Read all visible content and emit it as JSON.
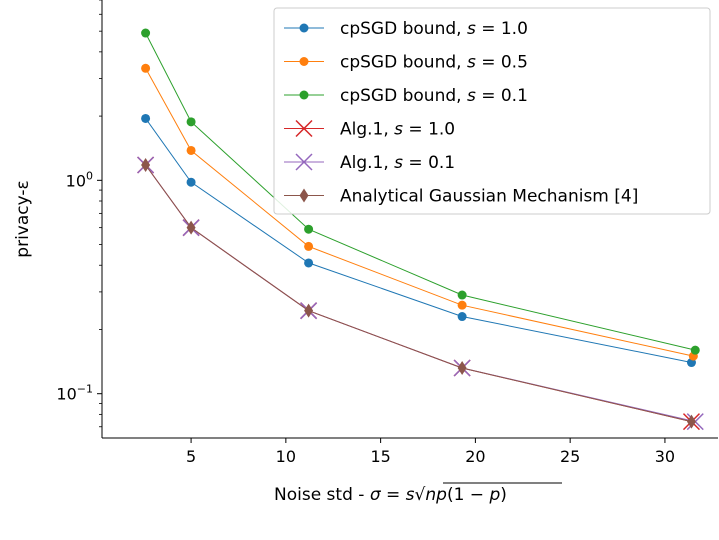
{
  "chart_data": {
    "type": "line",
    "xlabel": "Noise std - σ = s√(np(1 − p))",
    "ylabel": "privacy-ε",
    "xscale": "linear",
    "yscale": "log",
    "xlim": [
      0.3,
      32.8
    ],
    "ylim": [
      0.062,
      7.0
    ],
    "xticks": [
      5,
      10,
      15,
      20,
      25,
      30
    ],
    "xtick_labels": [
      "5",
      "10",
      "15",
      "20",
      "25",
      "30"
    ],
    "yticks": [
      0.1,
      1.0
    ],
    "ytick_labels": [
      "10⁻¹",
      "10⁰"
    ],
    "grid": false,
    "legend_position": "top-right",
    "series": [
      {
        "name": "cpSGD bound, s = 1.0",
        "color": "#1f77b4",
        "marker": "circle",
        "x": [
          2.6,
          5.0,
          11.2,
          19.3,
          31.4
        ],
        "y": [
          1.95,
          0.98,
          0.41,
          0.23,
          0.14
        ]
      },
      {
        "name": "cpSGD bound, s = 0.5",
        "color": "#ff7f0e",
        "marker": "circle",
        "x": [
          2.6,
          5.0,
          11.2,
          19.3,
          31.5
        ],
        "y": [
          3.35,
          1.38,
          0.49,
          0.26,
          0.15
        ]
      },
      {
        "name": "cpSGD bound, s = 0.1",
        "color": "#2ca02c",
        "marker": "circle",
        "x": [
          2.6,
          5.0,
          11.2,
          19.3,
          31.6
        ],
        "y": [
          4.9,
          1.88,
          0.59,
          0.29,
          0.16
        ]
      },
      {
        "name": "Alg.1, s = 1.0",
        "color": "#d62728",
        "marker": "x",
        "x": [
          2.6,
          5.0,
          11.2,
          19.3,
          31.4
        ],
        "y": [
          1.18,
          0.6,
          0.245,
          0.132,
          0.074
        ]
      },
      {
        "name": "Alg.1, s = 0.1",
        "color": "#9467bd",
        "marker": "x",
        "x": [
          2.6,
          5.0,
          11.2,
          19.3,
          31.6
        ],
        "y": [
          1.18,
          0.6,
          0.245,
          0.132,
          0.074
        ]
      },
      {
        "name": "Analytical Gaussian Mechanism [4]",
        "color": "#8c564b",
        "marker": "diamond",
        "x": [
          2.6,
          5.0,
          11.2,
          19.3,
          31.4
        ],
        "y": [
          1.18,
          0.6,
          0.245,
          0.132,
          0.074
        ]
      }
    ],
    "legend_entries": [
      {
        "prefix": "cpSGD bound, ",
        "var": "s",
        "suffix": " = 1.0"
      },
      {
        "prefix": "cpSGD bound, ",
        "var": "s",
        "suffix": " = 0.5"
      },
      {
        "prefix": "cpSGD bound, ",
        "var": "s",
        "suffix": " = 0.1"
      },
      {
        "prefix": "Alg.1, ",
        "var": "s",
        "suffix": " = 1.0"
      },
      {
        "prefix": "Alg.1, ",
        "var": "s",
        "suffix": " = 0.1"
      },
      {
        "prefix": "Analytical Gaussian Mechanism [4]",
        "var": "",
        "suffix": ""
      }
    ]
  }
}
